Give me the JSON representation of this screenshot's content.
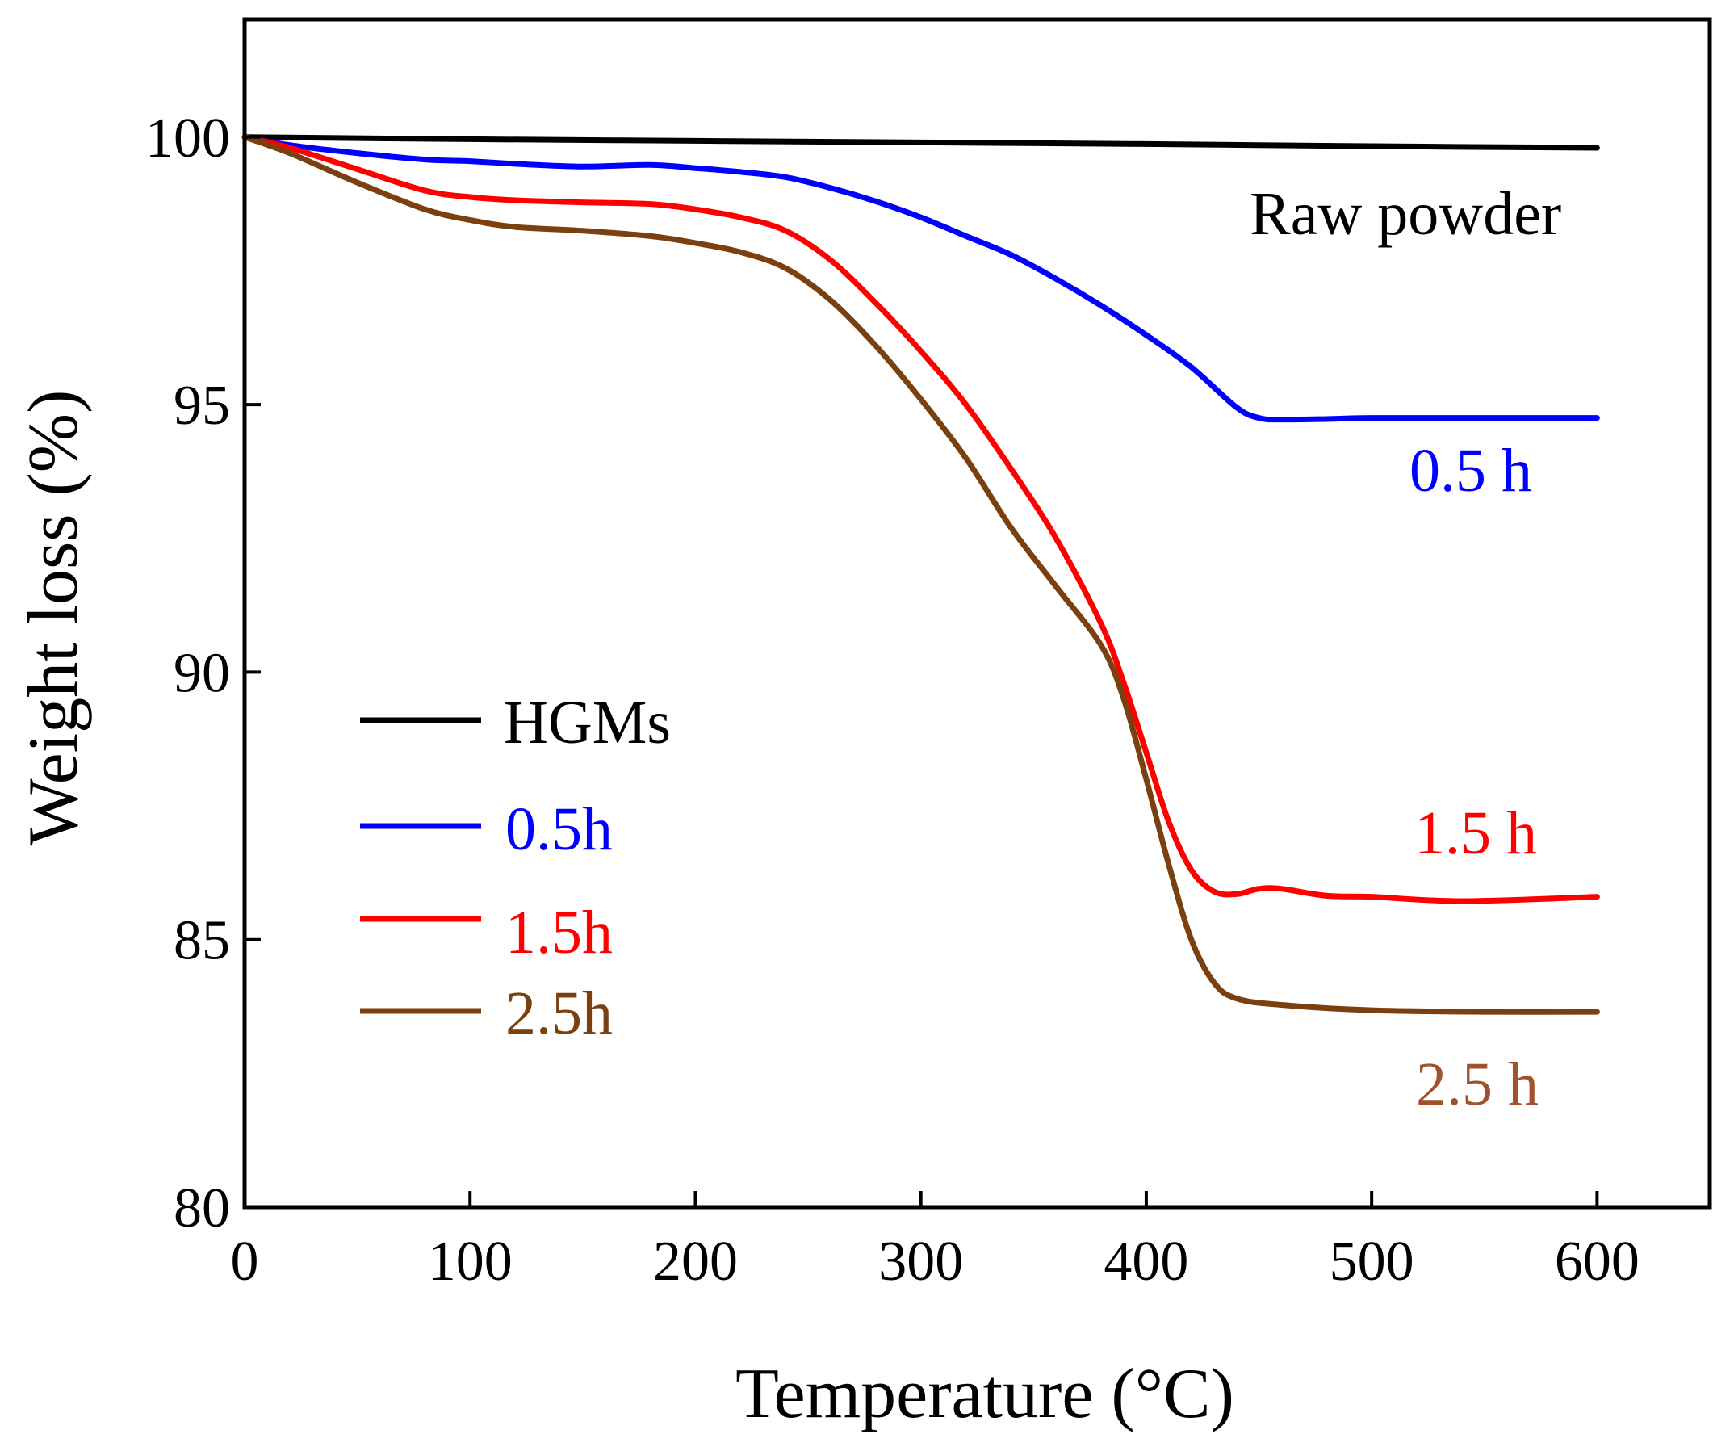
{
  "chart_data": {
    "type": "line",
    "title": "",
    "xlabel": "Temperature (°C)",
    "ylabel": "Weight loss (%)",
    "xlim": [
      0,
      650
    ],
    "ylim": [
      80,
      102.2
    ],
    "xticks": [
      0,
      100,
      200,
      300,
      400,
      500,
      600
    ],
    "yticks": [
      80,
      85,
      90,
      95,
      100
    ],
    "xtick_labels": [
      "0",
      "100",
      "200",
      "300",
      "400",
      "500",
      "600"
    ],
    "ytick_labels": [
      "80",
      "85",
      "90",
      "95",
      "100"
    ],
    "grid": false,
    "legend": {
      "position": "center-left",
      "entries": [
        "HGMs",
        "0.5h",
        "1.5h",
        "2.5h"
      ]
    },
    "series": [
      {
        "name": "HGMs",
        "color": "#000000",
        "x": [
          0,
          100,
          200,
          300,
          400,
          500,
          600
        ],
        "y": [
          100.0,
          99.96,
          99.93,
          99.9,
          99.87,
          99.83,
          99.8
        ]
      },
      {
        "name": "0.5h",
        "color": "#0000ff",
        "x": [
          0,
          20,
          50,
          80,
          100,
          120,
          150,
          180,
          200,
          220,
          240,
          260,
          280,
          300,
          320,
          340,
          360,
          380,
          400,
          420,
          440,
          450,
          460,
          480,
          500,
          550,
          600
        ],
        "y": [
          100.0,
          99.85,
          99.7,
          99.58,
          99.55,
          99.5,
          99.45,
          99.48,
          99.42,
          99.35,
          99.25,
          99.05,
          98.8,
          98.5,
          98.15,
          97.8,
          97.35,
          96.85,
          96.3,
          95.7,
          94.95,
          94.75,
          94.72,
          94.73,
          94.75,
          94.75,
          94.75
        ]
      },
      {
        "name": "1.5h",
        "color": "#ff0000",
        "x": [
          0,
          20,
          50,
          80,
          100,
          120,
          150,
          180,
          200,
          220,
          240,
          260,
          280,
          300,
          320,
          340,
          360,
          380,
          390,
          400,
          410,
          420,
          430,
          440,
          450,
          460,
          480,
          500,
          540,
          600
        ],
        "y": [
          100.0,
          99.8,
          99.4,
          99.0,
          98.88,
          98.82,
          98.78,
          98.75,
          98.65,
          98.5,
          98.25,
          97.7,
          96.9,
          96.0,
          95.0,
          93.8,
          92.5,
          90.9,
          89.8,
          88.5,
          87.2,
          86.3,
          85.9,
          85.85,
          85.95,
          85.95,
          85.82,
          85.8,
          85.72,
          85.8
        ]
      },
      {
        "name": "2.5h",
        "color": "#7a4010",
        "x": [
          0,
          20,
          50,
          80,
          100,
          120,
          150,
          180,
          200,
          220,
          240,
          260,
          280,
          300,
          320,
          340,
          360,
          380,
          390,
          400,
          410,
          420,
          430,
          440,
          460,
          500,
          550,
          600
        ],
        "y": [
          100.0,
          99.7,
          99.15,
          98.65,
          98.45,
          98.32,
          98.25,
          98.15,
          98.02,
          97.85,
          97.55,
          96.95,
          96.1,
          95.1,
          94.0,
          92.7,
          91.6,
          90.5,
          89.5,
          88.0,
          86.4,
          85.0,
          84.2,
          83.9,
          83.78,
          83.68,
          83.65,
          83.65
        ]
      }
    ],
    "annotations": [
      {
        "text": "Raw powder",
        "color": "#000000"
      },
      {
        "text": "0.5 h",
        "color": "#0000ff"
      },
      {
        "text": "1.5 h",
        "color": "#ff0000"
      },
      {
        "text": "2.5 h",
        "color": "#a0522d"
      }
    ]
  }
}
